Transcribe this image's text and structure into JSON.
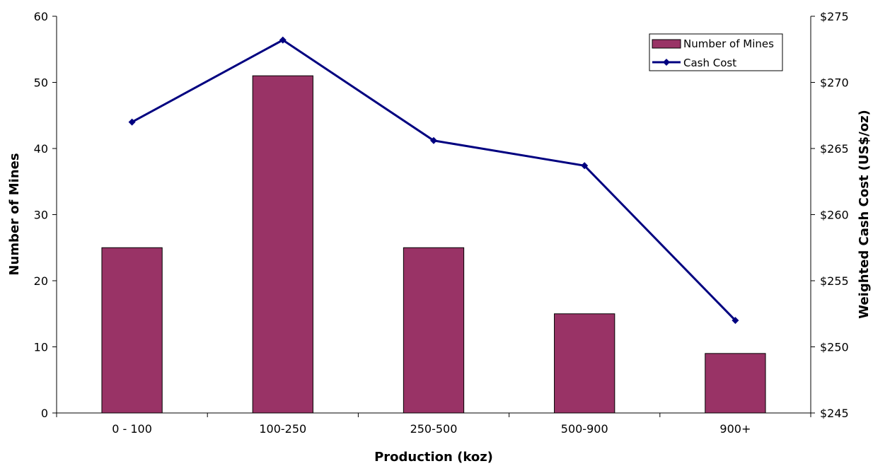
{
  "chart_data": {
    "type": "bar",
    "categories": [
      "0 - 100",
      "100-250",
      "250-500",
      "500-900",
      "900+"
    ],
    "series": [
      {
        "name": "Number of Mines",
        "type": "bar",
        "axis": "left",
        "color": "#993366",
        "values": [
          25,
          51,
          25,
          15,
          9
        ]
      },
      {
        "name": "Cash Cost",
        "type": "line",
        "axis": "right",
        "color": "#000080",
        "marker": "diamond",
        "values": [
          267.0,
          273.2,
          265.6,
          263.7,
          252.0
        ]
      }
    ],
    "xlabel": "Production (koz)",
    "ylabel": "Number of Mines",
    "y2label": "Weighted Cash Cost (US$/oz)",
    "ylim": [
      0,
      60
    ],
    "y2lim": [
      245,
      275
    ],
    "yticks": [
      "0",
      "10",
      "20",
      "30",
      "40",
      "50",
      "60"
    ],
    "y2ticks": [
      "$245",
      "$250",
      "$255",
      "$260",
      "$265",
      "$270",
      "$275"
    ],
    "grid": false,
    "legend_position": "top-right"
  }
}
